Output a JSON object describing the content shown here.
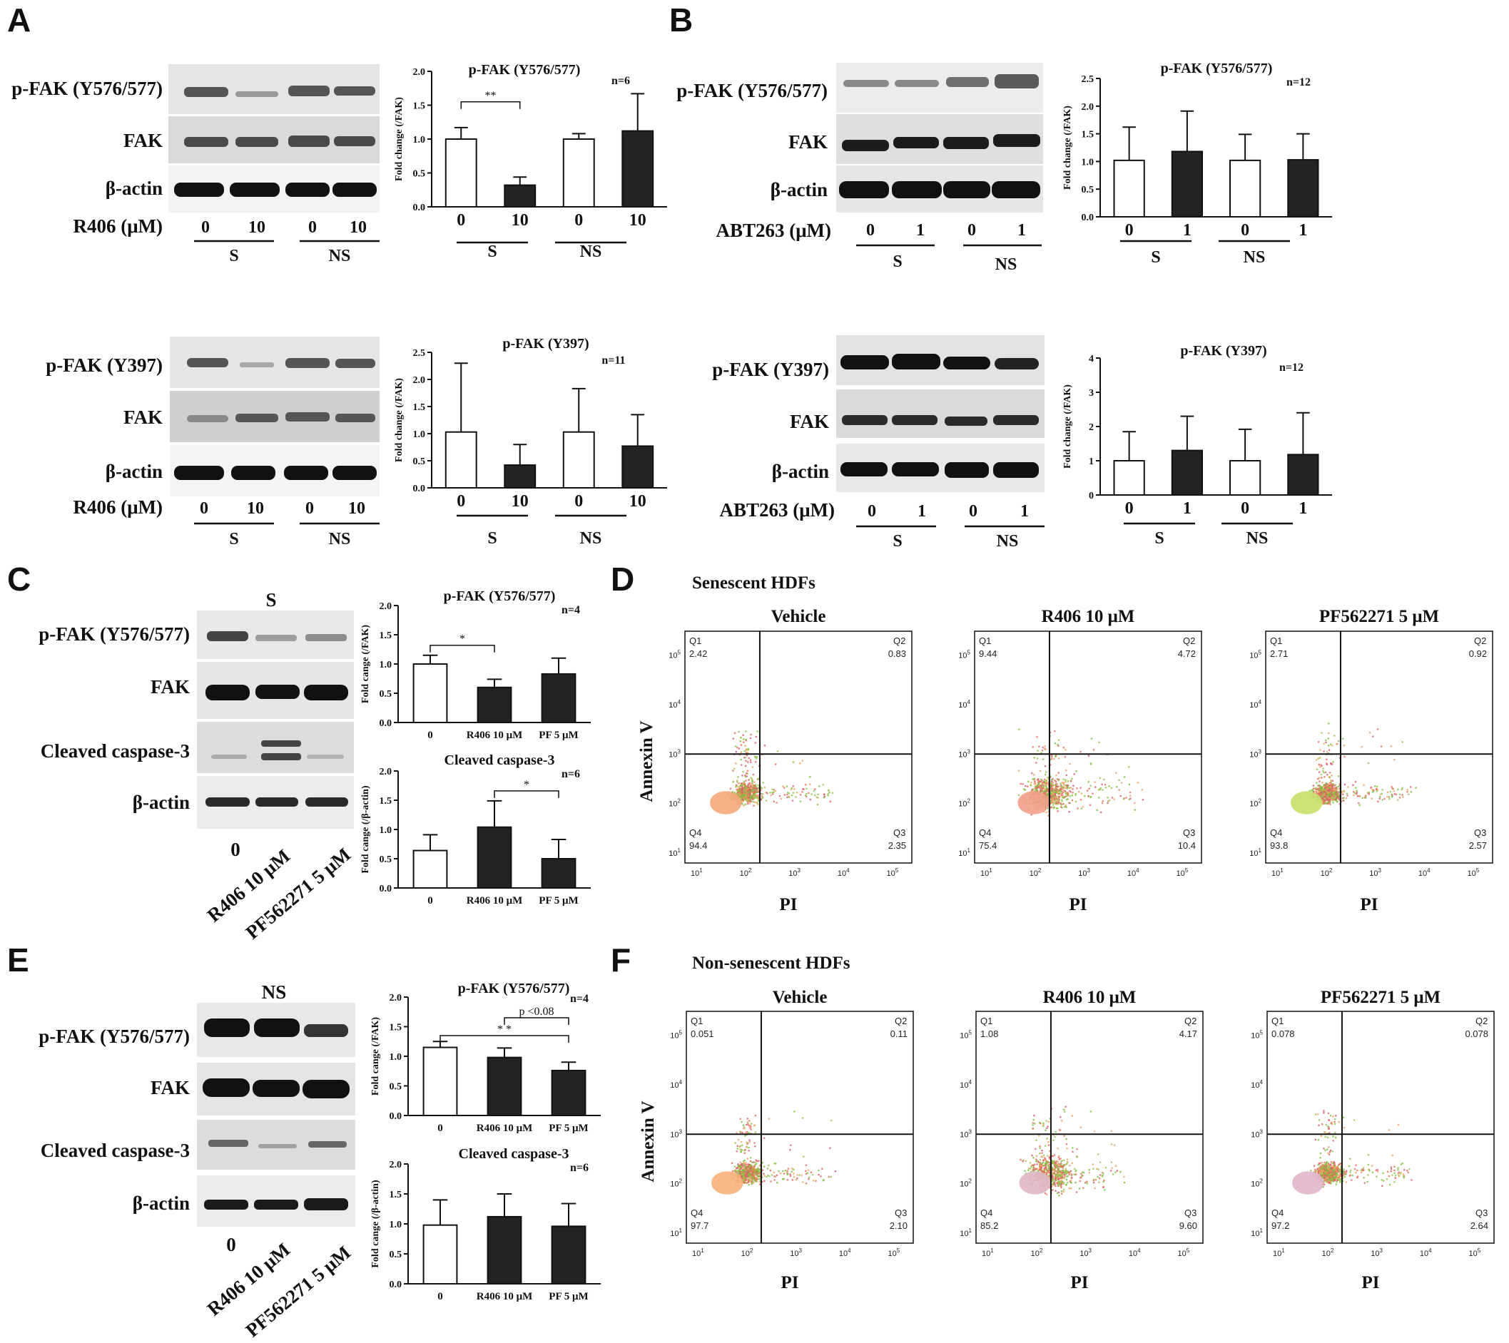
{
  "panels": {
    "A": "A",
    "B": "B",
    "C": "C",
    "D": "D",
    "E": "E",
    "F": "F"
  },
  "blots": {
    "A_top": {
      "rows": [
        "p-FAK (Y576/577)",
        "FAK",
        "β-actin"
      ],
      "drug": "R406 (μM)",
      "lanes": [
        "0",
        "10",
        "0",
        "10"
      ],
      "groups": [
        "S",
        "NS"
      ]
    },
    "A_bot": {
      "rows": [
        "p-FAK (Y397)",
        "FAK",
        "β-actin"
      ],
      "drug": "R406 (μM)",
      "lanes": [
        "0",
        "10",
        "0",
        "10"
      ],
      "groups": [
        "S",
        "NS"
      ]
    },
    "B_top": {
      "rows": [
        "p-FAK (Y576/577)",
        "FAK",
        "β-actin"
      ],
      "drug": "ABT263 (μM)",
      "lanes": [
        "0",
        "1",
        "0",
        "1"
      ],
      "groups": [
        "S",
        "NS"
      ]
    },
    "B_bot": {
      "rows": [
        "p-FAK (Y397)",
        "FAK",
        "β-actin"
      ],
      "drug": "ABT263 (μM)",
      "lanes": [
        "0",
        "1",
        "0",
        "1"
      ],
      "groups": [
        "S",
        "NS"
      ]
    },
    "C": {
      "header": "S",
      "rows": [
        "p-FAK (Y576/577)",
        "FAK",
        "Cleaved caspase-3",
        "β-actin"
      ],
      "lanes": [
        "0",
        "R406 10 μM",
        "PF562271 5 μM"
      ]
    },
    "E": {
      "header": "NS",
      "rows": [
        "p-FAK (Y576/577)",
        "FAK",
        "Cleaved caspase-3",
        "β-actin"
      ],
      "lanes": [
        "0",
        "R406 10 μM",
        "PF562271 5 μM"
      ]
    }
  },
  "chart_data": [
    {
      "id": "A1",
      "type": "bar",
      "title": "p-FAK (Y576/577)",
      "n": "n=6",
      "ylabel": "Fold change (/FAK)",
      "ylim": [
        0,
        2.0
      ],
      "yticks": [
        "0.0",
        "0.5",
        "1.0",
        "1.5",
        "2.0"
      ],
      "categories": [
        "0",
        "10",
        "0",
        "10"
      ],
      "groups": [
        "S",
        "NS"
      ],
      "values": [
        1.0,
        0.32,
        1.0,
        1.12
      ],
      "errors": [
        0.17,
        0.12,
        0.08,
        0.55
      ],
      "fills": [
        "white",
        "black",
        "white",
        "black"
      ],
      "sig": [
        {
          "from": 0,
          "to": 1,
          "text": "**"
        }
      ]
    },
    {
      "id": "A2",
      "type": "bar",
      "title": "p-FAK (Y397)",
      "n": "n=11",
      "ylabel": "Fold change (/FAK)",
      "ylim": [
        0,
        2.5
      ],
      "yticks": [
        "0.0",
        "0.5",
        "1.0",
        "1.5",
        "2.0",
        "2.5"
      ],
      "categories": [
        "0",
        "10",
        "0",
        "10"
      ],
      "groups": [
        "S",
        "NS"
      ],
      "values": [
        1.03,
        0.42,
        1.03,
        0.77
      ],
      "errors": [
        1.27,
        0.38,
        0.8,
        0.58
      ],
      "fills": [
        "white",
        "black",
        "white",
        "black"
      ],
      "sig": []
    },
    {
      "id": "B1",
      "type": "bar",
      "title": "p-FAK (Y576/577)",
      "n": "n=12",
      "ylabel": "Fold change (/FAK)",
      "ylim": [
        0,
        2.5
      ],
      "yticks": [
        "0.0",
        "0.5",
        "1.0",
        "1.5",
        "2.0",
        "2.5"
      ],
      "categories": [
        "0",
        "1",
        "0",
        "1"
      ],
      "groups": [
        "S",
        "NS"
      ],
      "values": [
        1.02,
        1.18,
        1.02,
        1.03
      ],
      "errors": [
        0.6,
        0.73,
        0.47,
        0.47
      ],
      "fills": [
        "white",
        "black",
        "white",
        "black"
      ],
      "sig": []
    },
    {
      "id": "B2",
      "type": "bar",
      "title": "p-FAK (Y397)",
      "n": "n=12",
      "ylabel": "Fold change (/FAK)",
      "ylim": [
        0,
        4
      ],
      "yticks": [
        "0",
        "1",
        "2",
        "3",
        "4"
      ],
      "categories": [
        "0",
        "1",
        "0",
        "1"
      ],
      "groups": [
        "S",
        "NS"
      ],
      "values": [
        1.0,
        1.3,
        1.0,
        1.18
      ],
      "errors": [
        0.85,
        1.0,
        0.92,
        1.22
      ],
      "fills": [
        "white",
        "black",
        "white",
        "black"
      ],
      "sig": []
    },
    {
      "id": "C1",
      "type": "bar",
      "title": "p-FAK (Y576/577)",
      "n": "n=4",
      "ylabel": "Fold cange (/FAK)",
      "ylim": [
        0,
        2.0
      ],
      "yticks": [
        "0.0",
        "0.5",
        "1.0",
        "1.5",
        "2.0"
      ],
      "categories": [
        "0",
        "R406 10 μM",
        "PF 5 μM"
      ],
      "groups": [],
      "values": [
        1.0,
        0.6,
        0.83
      ],
      "errors": [
        0.15,
        0.14,
        0.27
      ],
      "fills": [
        "white",
        "black",
        "black"
      ],
      "sig": [
        {
          "from": 0,
          "to": 1,
          "text": "*"
        }
      ]
    },
    {
      "id": "C2",
      "type": "bar",
      "title": "Cleaved caspase-3",
      "n": "n=6",
      "ylabel": "Fold cange (/β-actin)",
      "ylim": [
        0,
        2.0
      ],
      "yticks": [
        "0.0",
        "0.5",
        "1.0",
        "1.5",
        "2.0"
      ],
      "categories": [
        "0",
        "R406 10 μM",
        "PF 5 μM"
      ],
      "groups": [],
      "values": [
        0.64,
        1.04,
        0.5
      ],
      "errors": [
        0.27,
        0.45,
        0.33
      ],
      "fills": [
        "white",
        "black",
        "black"
      ],
      "sig": [
        {
          "from": 1,
          "to": 2,
          "text": "*"
        }
      ]
    },
    {
      "id": "E1",
      "type": "bar",
      "title": "p-FAK (Y576/577)",
      "n": "n=4",
      "ylabel": "Fold cange (/FAK)",
      "ylim": [
        0,
        2.0
      ],
      "yticks": [
        "0.0",
        "0.5",
        "1.0",
        "1.5",
        "2.0"
      ],
      "categories": [
        "0",
        "R406 10 μM",
        "PF 5 μM"
      ],
      "groups": [],
      "values": [
        1.15,
        0.98,
        0.76
      ],
      "errors": [
        0.1,
        0.16,
        0.14
      ],
      "fills": [
        "white",
        "black",
        "black"
      ],
      "sig": [
        {
          "from": 0,
          "to": 2,
          "text": "* *"
        },
        {
          "from": 1,
          "to": 2,
          "text": "p <0.08"
        }
      ]
    },
    {
      "id": "E2",
      "type": "bar",
      "title": "Cleaved caspase-3",
      "n": "n=6",
      "ylabel": "Fold cange (/β-actin)",
      "ylim": [
        0,
        2.0
      ],
      "yticks": [
        "0.0",
        "0.5",
        "1.0",
        "1.5",
        "2.0"
      ],
      "categories": [
        "0",
        "R406 10 μM",
        "PF 5 μM"
      ],
      "groups": [],
      "values": [
        0.98,
        1.12,
        0.96
      ],
      "errors": [
        0.42,
        0.38,
        0.38
      ],
      "fills": [
        "white",
        "black",
        "black"
      ],
      "sig": []
    },
    {
      "id": "D",
      "type": "scatter",
      "heading": "Senescent HDFs",
      "xlabel": "PI",
      "ylabel": "Annexin V",
      "plots": [
        {
          "title": "Vehicle",
          "Q1": "2.42",
          "Q2": "0.83",
          "Q3": "2.35",
          "Q4": "94.4",
          "core": "#f6a97a"
        },
        {
          "title": "R406 10 μM",
          "Q1": "9.44",
          "Q2": "4.72",
          "Q3": "10.4",
          "Q4": "75.4",
          "core": "#f2a08a"
        },
        {
          "title": "PF562271 5 μM",
          "Q1": "2.71",
          "Q2": "0.92",
          "Q3": "2.57",
          "Q4": "93.8",
          "core": "#c8e06a"
        }
      ]
    },
    {
      "id": "F",
      "type": "scatter",
      "heading": "Non-senescent HDFs",
      "xlabel": "PI",
      "ylabel": "Annexin V",
      "plots": [
        {
          "title": "Vehicle",
          "Q1": "0.051",
          "Q2": "0.11",
          "Q3": "2.10",
          "Q4": "97.7",
          "core": "#f8b07a"
        },
        {
          "title": "R406 10 μM",
          "Q1": "1.08",
          "Q2": "4.17",
          "Q3": "9.60",
          "Q4": "85.2",
          "core": "#e0b8c8"
        },
        {
          "title": "PF562271 5 μM",
          "Q1": "0.078",
          "Q2": "0.078",
          "Q3": "2.64",
          "Q4": "97.2",
          "core": "#e2b6cc"
        }
      ]
    }
  ]
}
